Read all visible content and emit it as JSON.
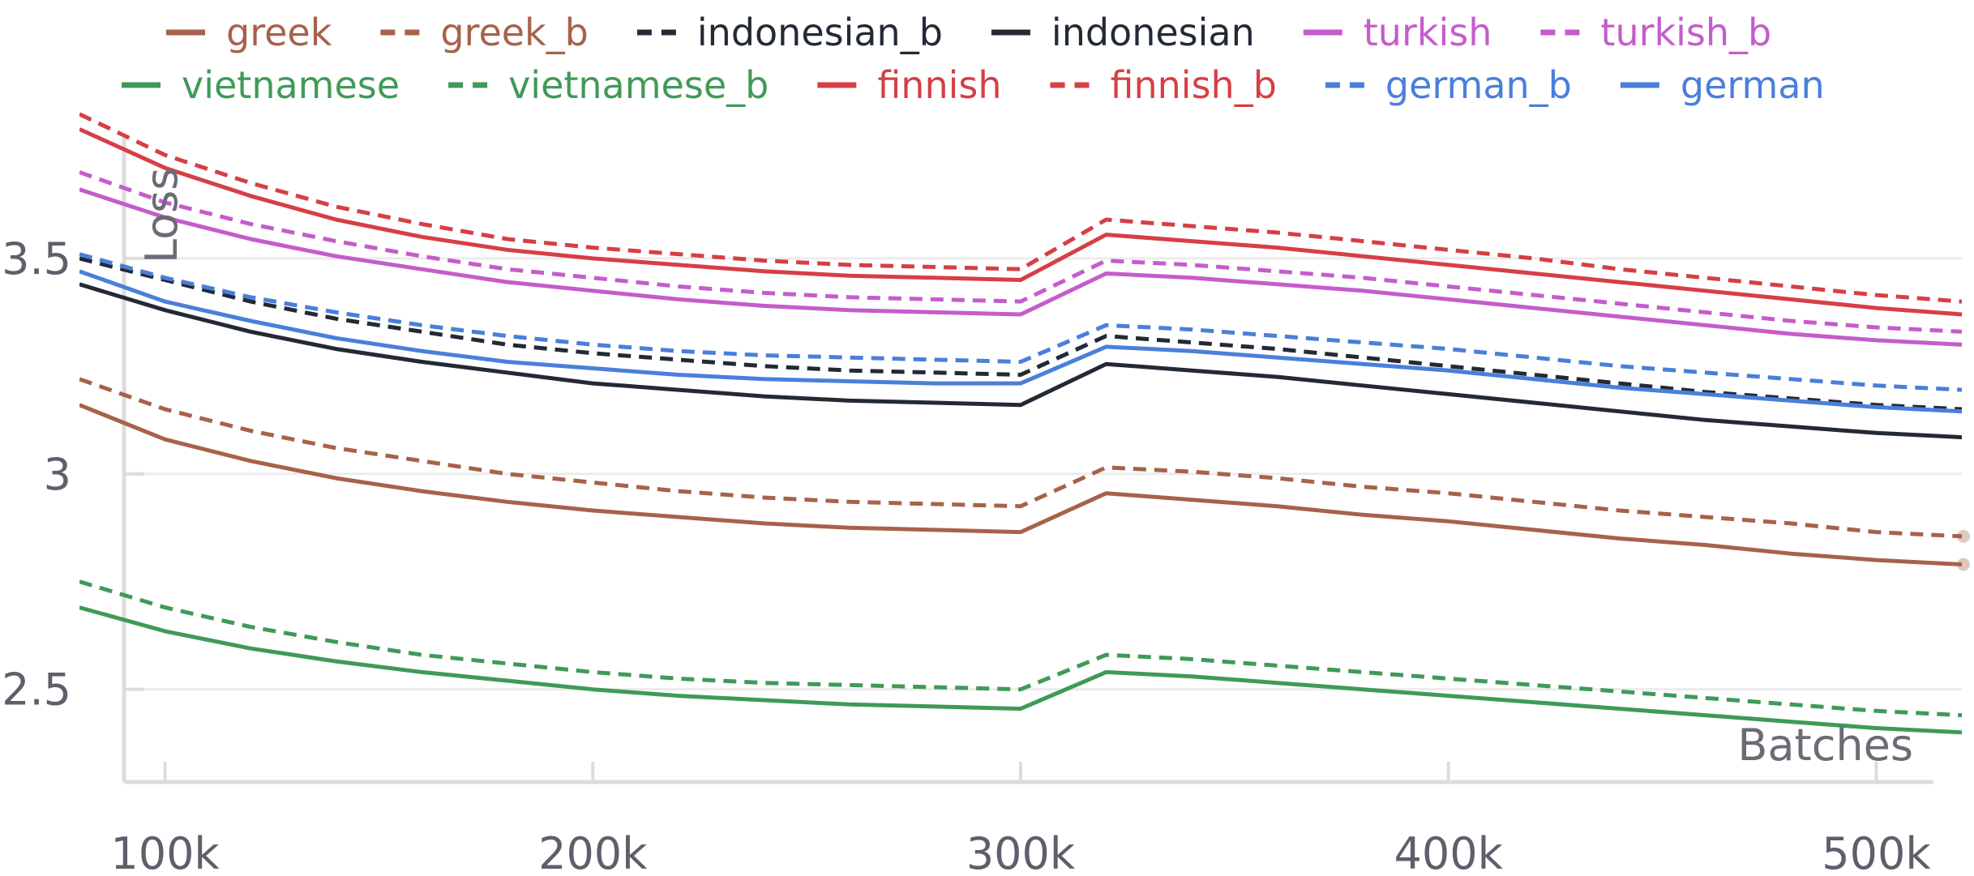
{
  "chart_data": {
    "type": "line",
    "xlabel": "Batches",
    "ylabel": "Loss",
    "xlim": [
      80000,
      520000
    ],
    "ylim": [
      2.285,
      3.78
    ],
    "x_ticks": [
      {
        "value": 100000,
        "label": "100k"
      },
      {
        "value": 200000,
        "label": "200k"
      },
      {
        "value": 300000,
        "label": "300k"
      },
      {
        "value": 400000,
        "label": "400k"
      },
      {
        "value": 500000,
        "label": "500k"
      }
    ],
    "y_ticks": [
      {
        "value": 2.5,
        "label": "2.5"
      },
      {
        "value": 3.0,
        "label": "3"
      },
      {
        "value": 3.5,
        "label": "3.5"
      }
    ],
    "grid": true,
    "legend_position": "top",
    "x": [
      80000,
      100000,
      120000,
      140000,
      160000,
      180000,
      200000,
      220000,
      240000,
      260000,
      280000,
      300000,
      320000,
      340000,
      360000,
      380000,
      400000,
      420000,
      440000,
      460000,
      480000,
      500000,
      520000
    ],
    "series": [
      {
        "name": "greek",
        "color": "#a7624a",
        "dash": "solid",
        "values": [
          3.16,
          3.08,
          3.03,
          2.99,
          2.96,
          2.935,
          2.915,
          2.9,
          2.885,
          2.875,
          2.87,
          2.865,
          2.955,
          2.94,
          2.925,
          2.905,
          2.89,
          2.87,
          2.85,
          2.835,
          2.815,
          2.8,
          2.79
        ]
      },
      {
        "name": "greek_b",
        "color": "#a7624a",
        "dash": "dashed",
        "values": [
          3.22,
          3.15,
          3.1,
          3.06,
          3.03,
          3.0,
          2.98,
          2.96,
          2.945,
          2.935,
          2.93,
          2.925,
          3.015,
          3.005,
          2.99,
          2.97,
          2.955,
          2.935,
          2.915,
          2.9,
          2.885,
          2.865,
          2.855
        ]
      },
      {
        "name": "indonesian_b",
        "color": "#232a36",
        "dash": "dashed",
        "values": [
          3.5,
          3.45,
          3.4,
          3.36,
          3.33,
          3.3,
          3.28,
          3.265,
          3.25,
          3.24,
          3.235,
          3.23,
          3.32,
          3.305,
          3.29,
          3.27,
          3.25,
          3.23,
          3.21,
          3.19,
          3.175,
          3.16,
          3.15
        ]
      },
      {
        "name": "indonesian",
        "color": "#232a36",
        "dash": "solid",
        "values": [
          3.44,
          3.38,
          3.33,
          3.29,
          3.26,
          3.235,
          3.21,
          3.195,
          3.18,
          3.17,
          3.165,
          3.16,
          3.255,
          3.24,
          3.225,
          3.205,
          3.185,
          3.165,
          3.145,
          3.125,
          3.11,
          3.095,
          3.085
        ]
      },
      {
        "name": "turkish",
        "color": "#c55ccb",
        "dash": "solid",
        "values": [
          3.66,
          3.595,
          3.545,
          3.505,
          3.475,
          3.445,
          3.425,
          3.405,
          3.39,
          3.38,
          3.375,
          3.37,
          3.465,
          3.455,
          3.44,
          3.425,
          3.405,
          3.385,
          3.365,
          3.345,
          3.325,
          3.31,
          3.3
        ]
      },
      {
        "name": "turkish_b",
        "color": "#c55ccb",
        "dash": "dashed",
        "values": [
          3.7,
          3.63,
          3.58,
          3.54,
          3.505,
          3.475,
          3.455,
          3.435,
          3.42,
          3.41,
          3.405,
          3.4,
          3.495,
          3.485,
          3.47,
          3.455,
          3.435,
          3.415,
          3.395,
          3.375,
          3.355,
          3.34,
          3.33
        ]
      },
      {
        "name": "vietnamese",
        "color": "#3f9a59",
        "dash": "solid",
        "values": [
          2.69,
          2.635,
          2.595,
          2.565,
          2.54,
          2.52,
          2.5,
          2.485,
          2.475,
          2.465,
          2.46,
          2.455,
          2.54,
          2.53,
          2.515,
          2.5,
          2.485,
          2.47,
          2.455,
          2.44,
          2.425,
          2.41,
          2.4
        ]
      },
      {
        "name": "vietnamese_b",
        "color": "#3f9a59",
        "dash": "dashed",
        "values": [
          2.75,
          2.69,
          2.645,
          2.61,
          2.58,
          2.56,
          2.54,
          2.525,
          2.515,
          2.51,
          2.505,
          2.5,
          2.58,
          2.57,
          2.555,
          2.54,
          2.525,
          2.51,
          2.495,
          2.48,
          2.465,
          2.45,
          2.44
        ]
      },
      {
        "name": "finnish",
        "color": "#d63f45",
        "dash": "solid",
        "values": [
          3.8,
          3.71,
          3.645,
          3.59,
          3.55,
          3.52,
          3.5,
          3.485,
          3.47,
          3.46,
          3.455,
          3.45,
          3.555,
          3.54,
          3.525,
          3.505,
          3.485,
          3.465,
          3.445,
          3.425,
          3.405,
          3.385,
          3.37
        ]
      },
      {
        "name": "finnish_b",
        "color": "#d63f45",
        "dash": "dashed",
        "values": [
          3.835,
          3.74,
          3.675,
          3.62,
          3.58,
          3.545,
          3.525,
          3.51,
          3.495,
          3.485,
          3.48,
          3.475,
          3.59,
          3.575,
          3.56,
          3.54,
          3.52,
          3.5,
          3.475,
          3.455,
          3.435,
          3.415,
          3.4
        ]
      },
      {
        "name": "german_b",
        "color": "#4a7fda",
        "dash": "dashed",
        "values": [
          3.51,
          3.455,
          3.41,
          3.375,
          3.345,
          3.32,
          3.3,
          3.285,
          3.275,
          3.27,
          3.265,
          3.26,
          3.345,
          3.335,
          3.32,
          3.305,
          3.29,
          3.27,
          3.25,
          3.235,
          3.22,
          3.205,
          3.195
        ]
      },
      {
        "name": "german",
        "color": "#4a7fda",
        "dash": "solid",
        "values": [
          3.47,
          3.4,
          3.355,
          3.315,
          3.285,
          3.26,
          3.245,
          3.23,
          3.22,
          3.215,
          3.21,
          3.21,
          3.295,
          3.285,
          3.27,
          3.255,
          3.24,
          3.22,
          3.2,
          3.185,
          3.17,
          3.155,
          3.145
        ]
      }
    ],
    "legend_rows": [
      [
        "greek",
        "greek_b",
        "indonesian_b",
        "indonesian",
        "turkish",
        "turkish_b"
      ],
      [
        "vietnamese",
        "vietnamese_b",
        "finnish",
        "finnish_b",
        "german_b",
        "german"
      ]
    ]
  }
}
